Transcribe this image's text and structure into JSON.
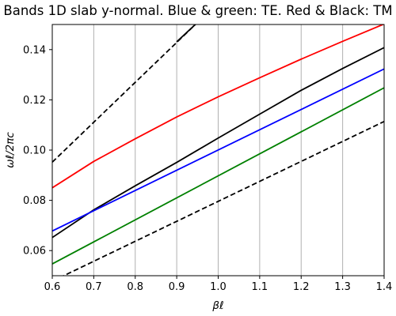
{
  "chart_data": {
    "type": "line",
    "title": "Bands 1D slab y-normal. Blue & green: TE. Red & Black: TM",
    "xlabel": "βℓ",
    "ylabel": "ωℓ/2πc",
    "xlim": [
      0.6,
      1.4
    ],
    "ylim": [
      0.05,
      0.15
    ],
    "xticks": [
      0.6,
      0.7,
      0.8,
      0.9,
      1.0,
      1.1,
      1.2,
      1.3,
      1.4
    ],
    "xtick_labels": [
      "0.6",
      "0.7",
      "0.8",
      "0.9",
      "1.0",
      "1.1",
      "1.2",
      "1.3",
      "1.4"
    ],
    "yticks": [
      0.06,
      0.08,
      0.1,
      0.12,
      0.14
    ],
    "ytick_labels": [
      "0.06",
      "0.08",
      "0.10",
      "0.12",
      "0.14"
    ],
    "grid": "vertical",
    "series": [
      {
        "color": "#ff0000",
        "dash": "solid",
        "x": [
          0.6,
          0.7,
          0.8,
          0.9,
          1.0,
          1.1,
          1.2,
          1.3,
          1.4
        ],
        "y": [
          0.085,
          0.0955,
          0.1045,
          0.1132,
          0.1212,
          0.1288,
          0.1362,
          0.1433,
          0.1502
        ]
      },
      {
        "color": "#000000",
        "dash": "solid",
        "x": [
          0.6,
          0.7,
          0.8,
          0.9,
          1.0,
          1.1,
          1.2,
          1.3,
          1.4
        ],
        "y": [
          0.0652,
          0.0762,
          0.0858,
          0.0951,
          0.1048,
          0.1143,
          0.1238,
          0.1325,
          0.1408
        ]
      },
      {
        "color": "#0000ff",
        "dash": "solid",
        "x": [
          0.6,
          1.4
        ],
        "y": [
          0.0678,
          0.1323
        ]
      },
      {
        "color": "#008000",
        "dash": "solid",
        "x": [
          0.6,
          1.4
        ],
        "y": [
          0.0547,
          0.1248
        ]
      },
      {
        "color": "#000000",
        "dash": "solid",
        "x": [
          0.9,
          0.95
        ],
        "y": [
          0.1431,
          0.1508
        ]
      },
      {
        "color": "#000000",
        "dash": "dashed",
        "x": [
          0.6,
          0.95
        ],
        "y": [
          0.0952,
          0.1508
        ]
      },
      {
        "color": "#000000",
        "dash": "dashed",
        "x": [
          0.6,
          1.4
        ],
        "y": [
          0.0478,
          0.1114
        ]
      }
    ]
  }
}
